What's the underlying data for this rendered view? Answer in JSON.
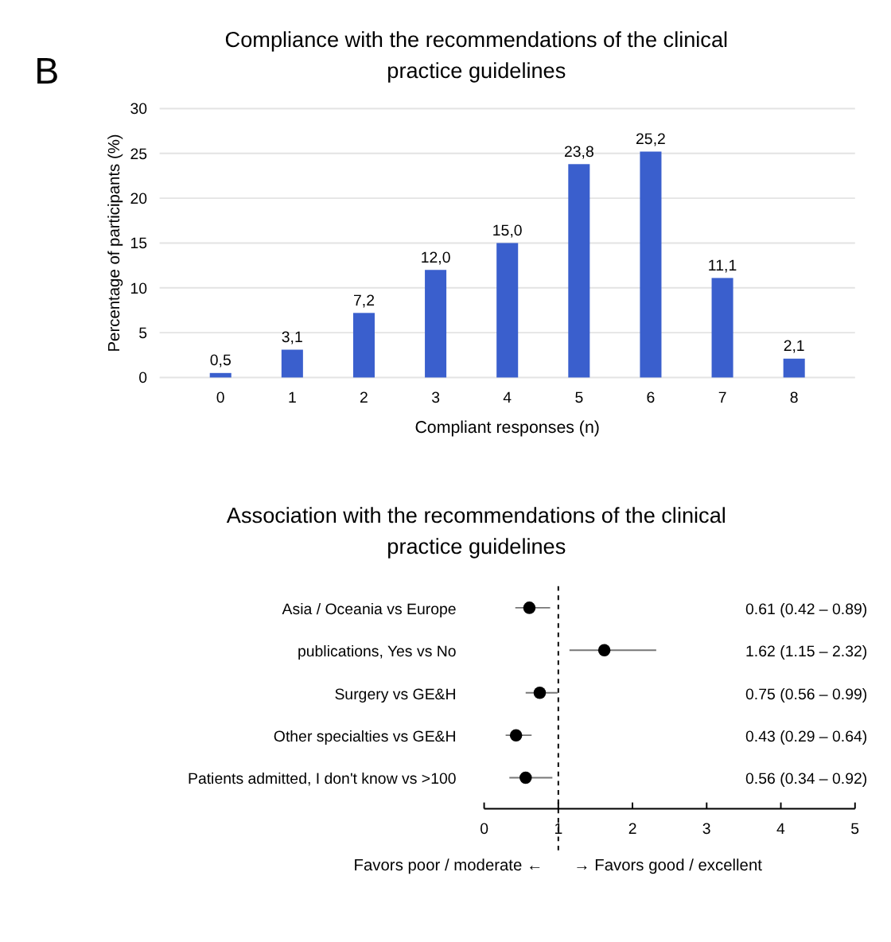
{
  "chart_data": [
    {
      "type": "bar",
      "title": "Compliance with the recommendations of the clinical practice guidelines",
      "xlabel": "Compliant responses (n)",
      "ylabel": "Percentage of participants (%)",
      "categories": [
        "0",
        "1",
        "2",
        "3",
        "4",
        "5",
        "6",
        "7",
        "8"
      ],
      "values": [
        0.5,
        3.1,
        7.2,
        12.0,
        15.0,
        23.8,
        25.2,
        11.1,
        2.1
      ],
      "value_labels": [
        "0,5",
        "3,1",
        "7,2",
        "12,0",
        "15,0",
        "23,8",
        "25,2",
        "11,1",
        "2,1"
      ],
      "color": "#3a5fcd",
      "ylim": [
        0,
        30
      ],
      "yticks": [
        0,
        5,
        10,
        15,
        20,
        25,
        30
      ],
      "grid": "y",
      "annotations": [
        "B"
      ]
    },
    {
      "type": "scatter",
      "orientation": "horizontal",
      "title": "Association with the recommendations of the clinical practice guidelines",
      "categories": [
        "Asia / Oceania vs Europe",
        "publications, Yes vs No",
        "Surgery vs GE&H",
        "Other specialties vs GE&H",
        "Patients admitted, I don't know vs >100"
      ],
      "values": [
        0.61,
        1.62,
        0.75,
        0.43,
        0.56
      ],
      "errors": [
        [
          0.42,
          0.89
        ],
        [
          1.15,
          2.32
        ],
        [
          0.56,
          0.99
        ],
        [
          0.29,
          0.64
        ],
        [
          0.34,
          0.92
        ]
      ],
      "color": "#000000",
      "marker": "circle",
      "xlim": [
        0,
        5
      ],
      "xticks": [
        0,
        1,
        2,
        3,
        4,
        5
      ],
      "ref_lines": [
        {
          "axis": "x",
          "value": 1,
          "line_style": "dashed"
        }
      ],
      "annotations": [
        "0.61 (0.42 – 0.89)",
        "1.62 (1.15 – 2.32)",
        "0.75 (0.56 – 0.99)",
        "0.43 (0.29 – 0.64)",
        "0.56 (0.34 – 0.92)",
        "Favors poor / moderate  ←",
        "→  Favors good / excellent"
      ]
    }
  ]
}
